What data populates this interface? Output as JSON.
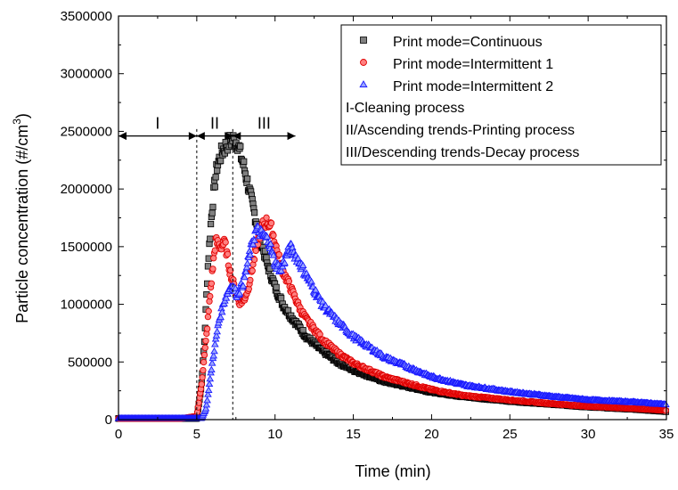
{
  "chart_data": {
    "type": "scatter",
    "xlabel": "Time (min)",
    "ylabel_main": "Particle concentration (#/cm",
    "ylabel_sup": "3",
    "ylabel_close": ")",
    "xlim": [
      0,
      35
    ],
    "ylim": [
      0,
      3500000
    ],
    "xticks": [
      0,
      5,
      10,
      15,
      20,
      25,
      30,
      35
    ],
    "yticks": [
      0,
      500000,
      1000000,
      1500000,
      2000000,
      2500000,
      3000000,
      3500000
    ],
    "legend_position": "top-right",
    "grid": false,
    "series": [
      {
        "name": "Print mode=Continuous",
        "marker": "square",
        "fill": "#808080",
        "stroke": "#000000",
        "x": [
          0,
          1,
          2,
          3,
          4,
          5,
          5.3,
          5.5,
          5.7,
          5.9,
          6.1,
          6.3,
          6.6,
          7.0,
          7.3,
          7.6,
          8.0,
          8.5,
          9.0,
          9.5,
          10.0,
          10.5,
          11.0,
          12.0,
          13.0,
          14.0,
          15.0,
          17.0,
          20.0,
          22.0,
          25.0,
          28.0,
          30.0,
          33.0,
          35.0
        ],
        "y": [
          10000,
          10000,
          10000,
          10000,
          10000,
          10000,
          300000,
          700000,
          1300000,
          1700000,
          2000000,
          2200000,
          2320000,
          2400000,
          2430000,
          2400000,
          2200000,
          1900000,
          1600000,
          1350000,
          1150000,
          1000000,
          900000,
          720000,
          600000,
          500000,
          430000,
          330000,
          240000,
          200000,
          160000,
          130000,
          110000,
          90000,
          70000
        ]
      },
      {
        "name": "Print mode=Intermittent 1",
        "marker": "circle",
        "fill": "#ff8080",
        "stroke": "#e00000",
        "x": [
          0,
          1,
          2,
          3,
          4,
          5,
          5.3,
          5.6,
          5.9,
          6.2,
          6.5,
          6.8,
          7.1,
          7.4,
          7.7,
          8.0,
          8.3,
          8.6,
          8.9,
          9.2,
          9.5,
          9.8,
          10.1,
          10.4,
          10.8,
          11.2,
          11.6,
          12.0,
          13.0,
          14.0,
          15.0,
          17.0,
          20.0,
          22.0,
          25.0,
          28.0,
          30.0,
          33.0,
          35.0
        ],
        "y": [
          10000,
          10000,
          10000,
          10000,
          10000,
          30000,
          300000,
          700000,
          1150000,
          1550000,
          1500000,
          1530000,
          1300000,
          1150000,
          1020000,
          1030000,
          1150000,
          1350000,
          1550000,
          1680000,
          1720000,
          1650000,
          1480000,
          1320000,
          1200000,
          1080000,
          960000,
          870000,
          700000,
          580000,
          490000,
          370000,
          260000,
          210000,
          170000,
          135000,
          115000,
          95000,
          80000
        ]
      },
      {
        "name": "Print mode=Intermittent 2",
        "marker": "triangle",
        "fill": "#9aa6ff",
        "stroke": "#1a1aff",
        "x": [
          0,
          1,
          2,
          3,
          4,
          5,
          5.3,
          5.6,
          6.0,
          6.4,
          6.8,
          7.2,
          7.6,
          8.0,
          8.4,
          8.8,
          9.2,
          9.6,
          10.0,
          10.4,
          10.7,
          11.0,
          11.4,
          11.8,
          12.2,
          12.6,
          13.0,
          14.0,
          15.0,
          17.0,
          20.0,
          22.0,
          25.0,
          28.0,
          30.0,
          33.0,
          35.0
        ],
        "y": [
          10000,
          10000,
          10000,
          10000,
          10000,
          10000,
          10000,
          100000,
          500000,
          850000,
          1050000,
          1170000,
          1080000,
          1200000,
          1450000,
          1650000,
          1600000,
          1550000,
          1350000,
          1300000,
          1420000,
          1490000,
          1400000,
          1300000,
          1200000,
          1100000,
          1000000,
          850000,
          720000,
          540000,
          370000,
          300000,
          240000,
          195000,
          170000,
          150000,
          130000
        ]
      }
    ],
    "regions": [
      {
        "label": "I",
        "x_start": 0,
        "x_end": 5,
        "y": 2460000
      },
      {
        "label": "II",
        "x_start": 5,
        "x_end": 7.3,
        "y": 2460000
      },
      {
        "label": "III",
        "x_start": 7.3,
        "x_end": 11.3,
        "y": 2460000
      }
    ],
    "boundaries": [
      5,
      7.3
    ],
    "legend_notes": [
      "I-Cleaning process",
      "II/Ascending trends-Printing process",
      "III/Descending trends-Decay process"
    ]
  }
}
